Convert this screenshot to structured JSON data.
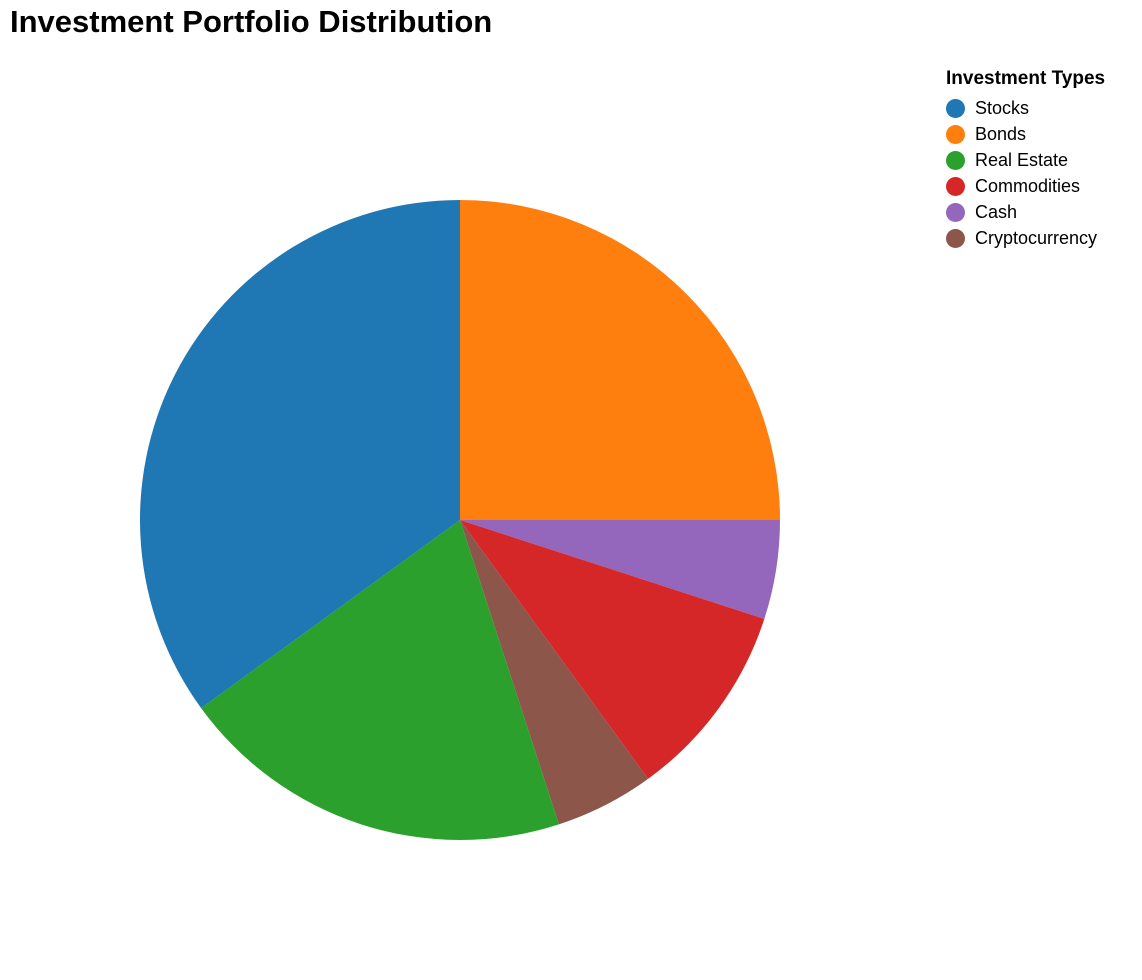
{
  "chart_data": {
    "type": "pie",
    "title": "Investment Portfolio Distribution",
    "legend": {
      "title": "Investment Types",
      "placement": "top-right"
    },
    "slices": [
      {
        "label": "Stocks",
        "value": 35,
        "color": "#1f77b4"
      },
      {
        "label": "Bonds",
        "value": 25,
        "color": "#ff7f0e"
      },
      {
        "label": "Real Estate",
        "value": 20,
        "color": "#2ca02c"
      },
      {
        "label": "Commodities",
        "value": 10,
        "color": "#d62728"
      },
      {
        "label": "Cash",
        "value": 5,
        "color": "#9467bd"
      },
      {
        "label": "Cryptocurrency",
        "value": 5,
        "color": "#8c564b"
      }
    ],
    "draw_order": [
      "Bonds",
      "Cash",
      "Commodities",
      "Cryptocurrency",
      "Real Estate",
      "Stocks"
    ]
  }
}
